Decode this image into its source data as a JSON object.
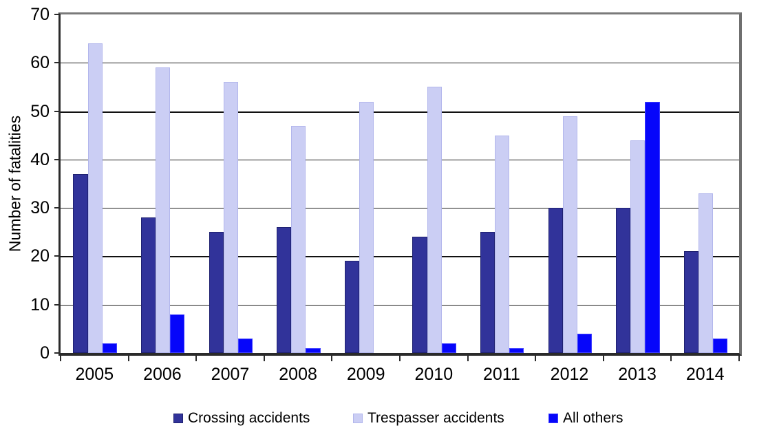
{
  "chart_data": {
    "type": "bar",
    "title": "",
    "xlabel": "",
    "ylabel": "Number of fatalities",
    "categories": [
      "2005",
      "2006",
      "2007",
      "2008",
      "2009",
      "2010",
      "2011",
      "2012",
      "2013",
      "2014"
    ],
    "series": [
      {
        "name": "Crossing accidents",
        "color": "#31339a",
        "border_color": "#1f2170",
        "values": [
          37,
          28,
          25,
          26,
          19,
          24,
          25,
          30,
          30,
          21
        ]
      },
      {
        "name": "Trespasser accidents",
        "color": "#cbcef4",
        "border_color": "#b2b6ec",
        "values": [
          64,
          59,
          56,
          47,
          52,
          55,
          45,
          49,
          44,
          33
        ]
      },
      {
        "name": "All others",
        "color": "#0606fa",
        "border_color": "#4040ff",
        "values": [
          2,
          8,
          3,
          1,
          0,
          2,
          1,
          4,
          52,
          3
        ]
      }
    ],
    "ylim": [
      0,
      70
    ],
    "ytick_step": 10,
    "yticks": [
      0,
      10,
      20,
      30,
      40,
      50,
      60,
      70
    ],
    "grid": true,
    "legend_position": "bottom",
    "plot_background": "#ffffff",
    "axis_color": "#2a2a2a",
    "frame_color": "#6f6f6f"
  }
}
